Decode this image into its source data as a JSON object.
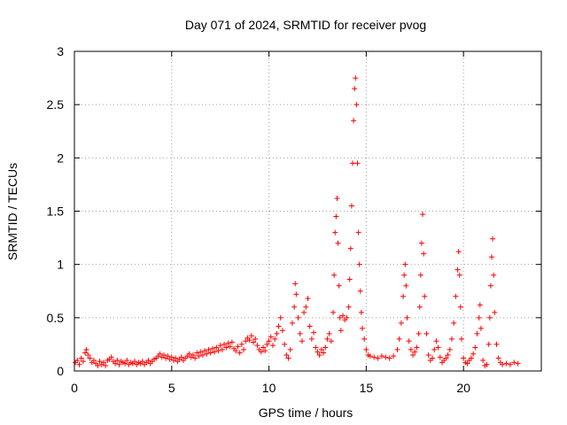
{
  "chart_data": {
    "type": "scatter",
    "title": "Day 071 of 2024, SRMTID for receiver pvog",
    "xlabel": "GPS time / hours",
    "ylabel": "SRMTID / TECUs",
    "xlim": [
      0,
      24
    ],
    "ylim": [
      0,
      3
    ],
    "xticks": [
      0,
      5,
      10,
      15,
      20
    ],
    "yticks": [
      0,
      0.5,
      1,
      1.5,
      2,
      2.5,
      3
    ],
    "grid": true,
    "marker": "+",
    "colors": {
      "series": "#ff0000",
      "axis": "#000000",
      "grid": "#a0a0a0"
    },
    "series": [
      {
        "name": "pvog",
        "points": [
          [
            0.05,
            0.08
          ],
          [
            0.15,
            0.1
          ],
          [
            0.25,
            0.06
          ],
          [
            0.35,
            0.12
          ],
          [
            0.45,
            0.09
          ],
          [
            0.55,
            0.17
          ],
          [
            0.62,
            0.2
          ],
          [
            0.7,
            0.15
          ],
          [
            0.8,
            0.12
          ],
          [
            0.9,
            0.08
          ],
          [
            1.0,
            0.1
          ],
          [
            1.1,
            0.07
          ],
          [
            1.2,
            0.05
          ],
          [
            1.3,
            0.09
          ],
          [
            1.4,
            0.06
          ],
          [
            1.5,
            0.08
          ],
          [
            1.6,
            0.05
          ],
          [
            1.7,
            0.1
          ],
          [
            1.8,
            0.11
          ],
          [
            1.9,
            0.13
          ],
          [
            2.0,
            0.09
          ],
          [
            2.1,
            0.07
          ],
          [
            2.2,
            0.1
          ],
          [
            2.3,
            0.06
          ],
          [
            2.4,
            0.09
          ],
          [
            2.5,
            0.08
          ],
          [
            2.6,
            0.07
          ],
          [
            2.7,
            0.1
          ],
          [
            2.8,
            0.06
          ],
          [
            2.9,
            0.08
          ],
          [
            3.0,
            0.07
          ],
          [
            3.1,
            0.09
          ],
          [
            3.2,
            0.06
          ],
          [
            3.3,
            0.08
          ],
          [
            3.4,
            0.07
          ],
          [
            3.5,
            0.09
          ],
          [
            3.6,
            0.06
          ],
          [
            3.7,
            0.08
          ],
          [
            3.8,
            0.1
          ],
          [
            3.9,
            0.07
          ],
          [
            4.0,
            0.09
          ],
          [
            4.1,
            0.11
          ],
          [
            4.2,
            0.12
          ],
          [
            4.3,
            0.14
          ],
          [
            4.4,
            0.16
          ],
          [
            4.5,
            0.13
          ],
          [
            4.6,
            0.15
          ],
          [
            4.7,
            0.12
          ],
          [
            4.8,
            0.14
          ],
          [
            4.9,
            0.11
          ],
          [
            5.0,
            0.13
          ],
          [
            5.1,
            0.1
          ],
          [
            5.2,
            0.12
          ],
          [
            5.3,
            0.09
          ],
          [
            5.4,
            0.11
          ],
          [
            5.5,
            0.13
          ],
          [
            5.6,
            0.1
          ],
          [
            5.7,
            0.12
          ],
          [
            5.8,
            0.14
          ],
          [
            5.9,
            0.16
          ],
          [
            6.0,
            0.13
          ],
          [
            6.1,
            0.15
          ],
          [
            6.2,
            0.12
          ],
          [
            6.3,
            0.17
          ],
          [
            6.4,
            0.14
          ],
          [
            6.5,
            0.18
          ],
          [
            6.6,
            0.15
          ],
          [
            6.7,
            0.19
          ],
          [
            6.8,
            0.16
          ],
          [
            6.9,
            0.2
          ],
          [
            7.0,
            0.17
          ],
          [
            7.1,
            0.21
          ],
          [
            7.2,
            0.18
          ],
          [
            7.3,
            0.22
          ],
          [
            7.4,
            0.19
          ],
          [
            7.5,
            0.24
          ],
          [
            7.6,
            0.2
          ],
          [
            7.7,
            0.25
          ],
          [
            7.8,
            0.22
          ],
          [
            7.9,
            0.26
          ],
          [
            8.0,
            0.23
          ],
          [
            8.1,
            0.27
          ],
          [
            8.2,
            0.21
          ],
          [
            8.3,
            0.19
          ],
          [
            8.4,
            0.23
          ],
          [
            8.5,
            0.17
          ],
          [
            8.6,
            0.25
          ],
          [
            8.7,
            0.2
          ],
          [
            8.8,
            0.28
          ],
          [
            8.9,
            0.31
          ],
          [
            9.0,
            0.29
          ],
          [
            9.1,
            0.33
          ],
          [
            9.2,
            0.27
          ],
          [
            9.3,
            0.3
          ],
          [
            9.4,
            0.24
          ],
          [
            9.5,
            0.2
          ],
          [
            9.6,
            0.18
          ],
          [
            9.7,
            0.22
          ],
          [
            9.8,
            0.19
          ],
          [
            9.9,
            0.25
          ],
          [
            10.0,
            0.28
          ],
          [
            10.1,
            0.32
          ],
          [
            10.2,
            0.24
          ],
          [
            10.3,
            0.3
          ],
          [
            10.4,
            0.35
          ],
          [
            10.5,
            0.42
          ],
          [
            10.6,
            0.5
          ],
          [
            10.7,
            0.38
          ],
          [
            10.8,
            0.25
          ],
          [
            10.9,
            0.15
          ],
          [
            11.0,
            0.12
          ],
          [
            11.1,
            0.2
          ],
          [
            11.2,
            0.45
          ],
          [
            11.3,
            0.6
          ],
          [
            11.35,
            0.82
          ],
          [
            11.4,
            0.72
          ],
          [
            11.5,
            0.5
          ],
          [
            11.6,
            0.35
          ],
          [
            11.7,
            0.28
          ],
          [
            11.8,
            0.55
          ],
          [
            11.9,
            0.6
          ],
          [
            12.0,
            0.68
          ],
          [
            12.1,
            0.42
          ],
          [
            12.2,
            0.3
          ],
          [
            12.3,
            0.36
          ],
          [
            12.4,
            0.22
          ],
          [
            12.5,
            0.18
          ],
          [
            12.6,
            0.15
          ],
          [
            12.7,
            0.2
          ],
          [
            12.8,
            0.17
          ],
          [
            12.9,
            0.22
          ],
          [
            13.0,
            0.3
          ],
          [
            13.1,
            0.35
          ],
          [
            13.2,
            0.28
          ],
          [
            13.3,
            0.55
          ],
          [
            13.35,
            0.9
          ],
          [
            13.4,
            1.3
          ],
          [
            13.45,
            1.45
          ],
          [
            13.5,
            1.62
          ],
          [
            13.55,
            1.2
          ],
          [
            13.6,
            0.8
          ],
          [
            13.65,
            0.5
          ],
          [
            13.7,
            0.38
          ],
          [
            13.8,
            0.52
          ],
          [
            13.9,
            0.48
          ],
          [
            14.0,
            0.5
          ],
          [
            14.1,
            0.6
          ],
          [
            14.15,
            0.86
          ],
          [
            14.2,
            1.15
          ],
          [
            14.25,
            1.55
          ],
          [
            14.3,
            1.95
          ],
          [
            14.35,
            2.35
          ],
          [
            14.4,
            2.65
          ],
          [
            14.45,
            2.75
          ],
          [
            14.5,
            2.5
          ],
          [
            14.55,
            1.95
          ],
          [
            14.6,
            1.3
          ],
          [
            14.65,
            1.0
          ],
          [
            14.7,
            0.75
          ],
          [
            14.75,
            0.55
          ],
          [
            14.8,
            0.4
          ],
          [
            14.9,
            0.3
          ],
          [
            15.0,
            0.2
          ],
          [
            15.1,
            0.15
          ],
          [
            15.2,
            0.14
          ],
          [
            15.4,
            0.13
          ],
          [
            15.6,
            0.12
          ],
          [
            15.8,
            0.14
          ],
          [
            16.0,
            0.13
          ],
          [
            16.2,
            0.12
          ],
          [
            16.4,
            0.14
          ],
          [
            16.6,
            0.2
          ],
          [
            16.7,
            0.3
          ],
          [
            16.8,
            0.45
          ],
          [
            16.9,
            0.7
          ],
          [
            16.95,
            0.9
          ],
          [
            17.0,
            1.0
          ],
          [
            17.05,
            0.8
          ],
          [
            17.1,
            0.5
          ],
          [
            17.2,
            0.28
          ],
          [
            17.3,
            0.2
          ],
          [
            17.4,
            0.15
          ],
          [
            17.5,
            0.18
          ],
          [
            17.6,
            0.22
          ],
          [
            17.7,
            0.35
          ],
          [
            17.75,
            0.6
          ],
          [
            17.8,
            0.9
          ],
          [
            17.85,
            1.2
          ],
          [
            17.9,
            1.47
          ],
          [
            17.95,
            1.1
          ],
          [
            18.0,
            0.7
          ],
          [
            18.1,
            0.35
          ],
          [
            18.2,
            0.15
          ],
          [
            18.3,
            0.1
          ],
          [
            18.4,
            0.12
          ],
          [
            18.5,
            0.2
          ],
          [
            18.6,
            0.28
          ],
          [
            18.7,
            0.22
          ],
          [
            18.8,
            0.13
          ],
          [
            18.9,
            0.08
          ],
          [
            19.0,
            0.1
          ],
          [
            19.1,
            0.12
          ],
          [
            19.2,
            0.15
          ],
          [
            19.3,
            0.2
          ],
          [
            19.4,
            0.3
          ],
          [
            19.5,
            0.45
          ],
          [
            19.6,
            0.7
          ],
          [
            19.7,
            0.95
          ],
          [
            19.75,
            1.12
          ],
          [
            19.8,
            0.9
          ],
          [
            19.85,
            0.6
          ],
          [
            19.9,
            0.3
          ],
          [
            20.0,
            0.12
          ],
          [
            20.1,
            0.08
          ],
          [
            20.2,
            0.07
          ],
          [
            20.3,
            0.1
          ],
          [
            20.4,
            0.12
          ],
          [
            20.5,
            0.16
          ],
          [
            20.6,
            0.22
          ],
          [
            20.7,
            0.35
          ],
          [
            20.8,
            0.5
          ],
          [
            20.85,
            0.62
          ],
          [
            20.9,
            0.4
          ],
          [
            21.0,
            0.1
          ],
          [
            21.1,
            0.05
          ],
          [
            21.2,
            0.06
          ],
          [
            21.3,
            0.25
          ],
          [
            21.35,
            0.5
          ],
          [
            21.4,
            0.8
          ],
          [
            21.45,
            1.07
          ],
          [
            21.5,
            1.24
          ],
          [
            21.55,
            0.9
          ],
          [
            21.6,
            0.55
          ],
          [
            21.7,
            0.25
          ],
          [
            21.8,
            0.12
          ],
          [
            21.9,
            0.08
          ],
          [
            22.0,
            0.06
          ],
          [
            22.2,
            0.07
          ],
          [
            22.4,
            0.06
          ],
          [
            22.6,
            0.08
          ],
          [
            22.8,
            0.07
          ]
        ]
      }
    ]
  }
}
